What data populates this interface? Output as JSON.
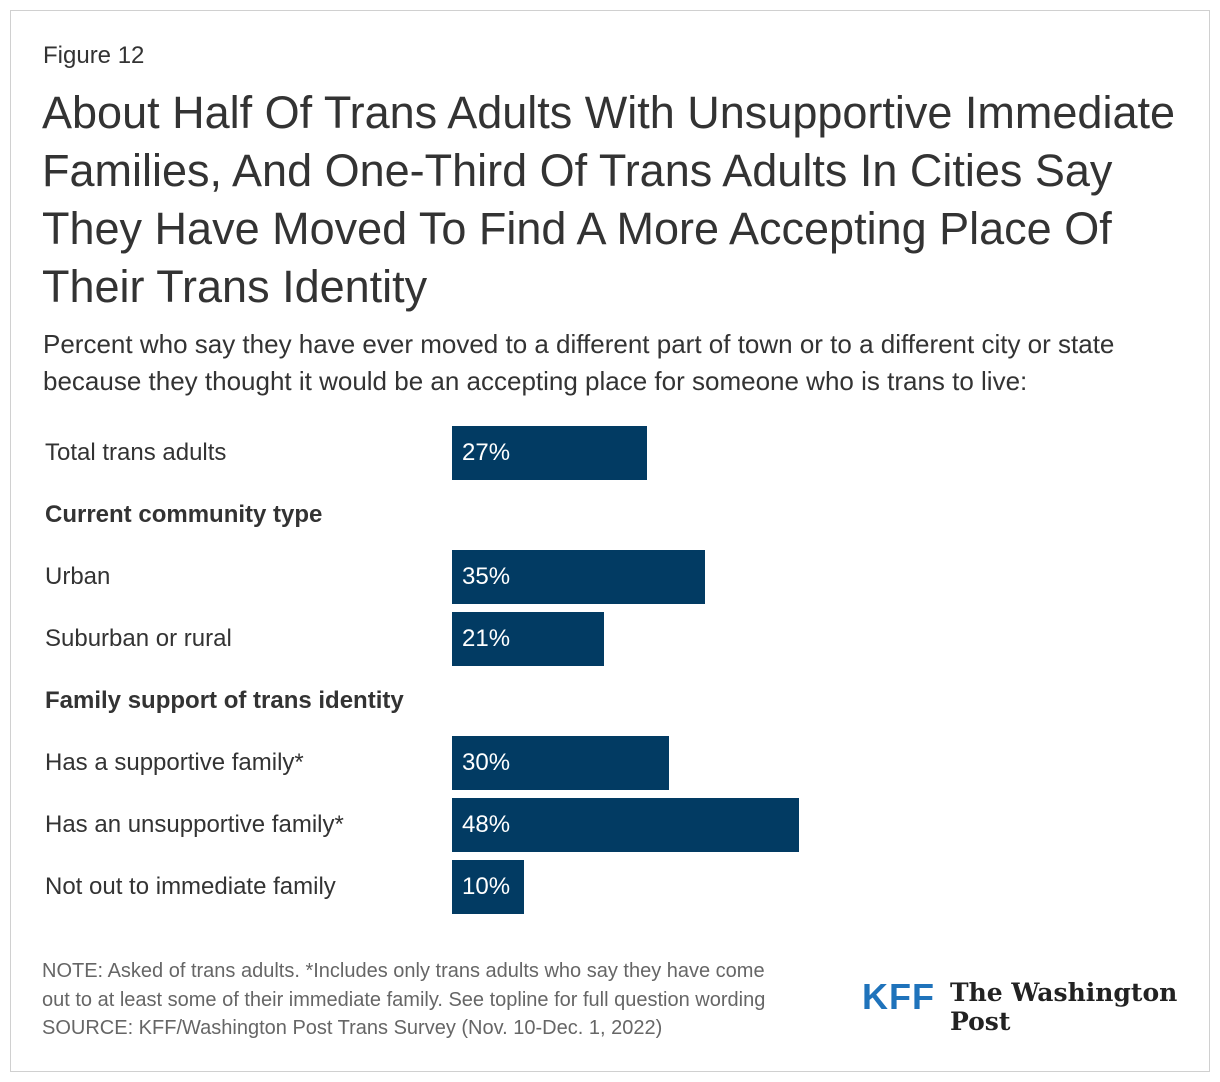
{
  "figure_label": "Figure 12",
  "chart_data": {
    "type": "bar",
    "orientation": "horizontal",
    "title": "About Half Of Trans Adults With Unsupportive Immediate Families, And One-Third Of Trans Adults In Cities Say They Have Moved To Find A More Accepting Place Of Their Trans Identity",
    "subtitle": "Percent who say they have ever moved to a different part of town or to a different city or state because they thought it would be an accepting place for someone who is trans to live:",
    "bar_color": "#023b63",
    "rows": [
      {
        "label": "Total trans adults",
        "value": 27,
        "display": "27%"
      },
      {
        "label": "Current community type",
        "header": true
      },
      {
        "label": "Urban",
        "value": 35,
        "display": "35%"
      },
      {
        "label": "Suburban or rural",
        "value": 21,
        "display": "21%"
      },
      {
        "label": "Family support of trans identity",
        "header": true
      },
      {
        "label": "Has a supportive family*",
        "value": 30,
        "display": "30%"
      },
      {
        "label": "Has an unsupportive family*",
        "value": 48,
        "display": "48%"
      },
      {
        "label": "Not out to immediate family",
        "value": 10,
        "display": "10%"
      }
    ],
    "xlim": [
      0,
      100
    ],
    "grid": false
  },
  "notes": {
    "line1": "NOTE: Asked of trans adults. *Includes only trans adults who say they have come",
    "line2": "out to at least some of their immediate family. See topline for full question wording",
    "source": "SOURCE: KFF/Washington Post Trans Survey (Nov. 10-Dec. 1, 2022)"
  },
  "logos": {
    "kff": "KFF",
    "wapo": "The Washington Post"
  }
}
